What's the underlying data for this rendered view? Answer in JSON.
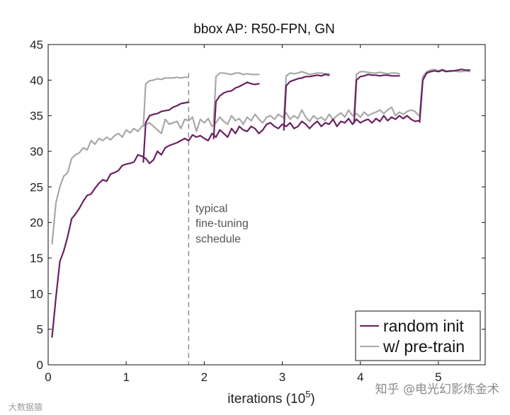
{
  "chart_data": {
    "type": "line",
    "title": "bbox AP: R50-FPN, GN",
    "xlabel": "iterations (10",
    "xlabel_sup": "5",
    "xlabel_end": ")",
    "ylabel": "",
    "xlim": [
      0,
      5.6
    ],
    "ylim": [
      0,
      45
    ],
    "xticks": [
      0,
      1,
      2,
      3,
      4,
      5
    ],
    "xtick_labels": [
      "0",
      "1",
      "2",
      "3",
      "4",
      "5"
    ],
    "yticks": [
      0,
      5,
      10,
      15,
      20,
      25,
      30,
      35,
      40,
      45
    ],
    "ytick_labels": [
      "0",
      "5",
      "10",
      "15",
      "20",
      "25",
      "30",
      "35",
      "40",
      "45"
    ],
    "grid": false,
    "legend_position": "bottom-right",
    "annotation": {
      "x": 1.8,
      "lines": [
        "typical",
        "fine-tuning",
        "schedule"
      ]
    },
    "series": [
      {
        "name": "random init",
        "color": "#6a2060",
        "segments": [
          {
            "x": [
              0.05,
              0.1,
              0.15,
              0.2,
              0.25,
              0.3,
              0.35,
              0.4,
              0.45,
              0.5,
              0.55,
              0.6,
              0.65,
              0.7,
              0.75,
              0.8,
              0.85,
              0.9,
              0.95,
              1.0,
              1.05,
              1.1,
              1.15,
              1.2,
              1.25,
              1.3,
              1.35,
              1.4,
              1.45,
              1.5,
              1.55,
              1.6,
              1.65,
              1.7,
              1.75,
              1.8,
              1.85,
              1.9,
              1.95,
              2.0,
              2.05,
              2.1,
              2.15,
              2.2,
              2.25,
              2.3,
              2.35,
              2.4,
              2.45,
              2.5,
              2.55,
              2.6,
              2.65,
              2.7,
              2.75,
              2.8,
              2.85,
              2.9,
              2.95,
              3.0,
              3.05,
              3.1,
              3.15,
              3.2,
              3.25,
              3.3,
              3.35,
              3.4,
              3.45,
              3.5,
              3.55,
              3.6,
              3.65,
              3.7,
              3.75,
              3.8,
              3.85,
              3.9,
              3.95,
              4.0,
              4.05,
              4.1,
              4.15,
              4.2,
              4.25,
              4.3,
              4.35,
              4.4,
              4.45,
              4.5,
              4.55,
              4.6,
              4.65,
              4.7,
              4.75
            ],
            "y": [
              3.9,
              9.5,
              14.5,
              16.0,
              18.0,
              20.5,
              21.2,
              22.0,
              23.0,
              23.8,
              24.0,
              24.8,
              25.5,
              26.0,
              25.8,
              26.8,
              27.0,
              27.3,
              28.0,
              28.2,
              28.3,
              28.5,
              29.5,
              29.3,
              29.0,
              28.3,
              28.8,
              30.0,
              29.5,
              30.5,
              30.8,
              31.0,
              31.2,
              31.5,
              31.8,
              31.5,
              32.3,
              32.0,
              32.2,
              31.8,
              31.5,
              32.5,
              32.0,
              33.0,
              32.5,
              32.0,
              33.2,
              32.5,
              33.5,
              33.0,
              32.8,
              33.5,
              33.2,
              32.5,
              33.0,
              33.8,
              34.0,
              33.5,
              33.2,
              33.8,
              33.5,
              34.0,
              33.2,
              33.5,
              34.2,
              33.8,
              33.2,
              33.8,
              34.2,
              33.5,
              34.0,
              33.8,
              34.5,
              33.5,
              34.2,
              34.0,
              34.6,
              33.8,
              34.5,
              34.0,
              34.3,
              34.5,
              34.0,
              34.6,
              34.2,
              35.0,
              34.3,
              34.8,
              34.5,
              35.0,
              34.6,
              35.0,
              34.5,
              34.2,
              34.3
            ]
          },
          {
            "x": [
              1.22,
              1.25,
              1.3,
              1.35,
              1.4,
              1.45,
              1.5,
              1.55,
              1.6,
              1.65,
              1.7,
              1.75,
              1.8
            ],
            "y": [
              28.5,
              34.0,
              35.0,
              35.2,
              35.3,
              35.6,
              35.7,
              35.8,
              36.2,
              36.4,
              36.7,
              36.8,
              36.9
            ]
          },
          {
            "x": [
              2.12,
              2.15,
              2.2,
              2.25,
              2.3,
              2.35,
              2.4,
              2.45,
              2.5,
              2.55,
              2.6,
              2.65,
              2.7
            ],
            "y": [
              31.8,
              37.0,
              37.8,
              38.2,
              38.4,
              38.5,
              38.9,
              39.1,
              39.4,
              39.7,
              39.5,
              39.4,
              39.5
            ]
          },
          {
            "x": [
              3.02,
              3.05,
              3.1,
              3.15,
              3.2,
              3.25,
              3.3,
              3.35,
              3.4,
              3.45,
              3.5,
              3.55,
              3.6
            ],
            "y": [
              33.0,
              39.2,
              39.8,
              40.0,
              40.2,
              40.3,
              40.5,
              40.5,
              40.6,
              40.7,
              40.6,
              40.8,
              40.7
            ]
          },
          {
            "x": [
              3.92,
              3.95,
              4.0,
              4.05,
              4.1,
              4.15,
              4.2,
              4.25,
              4.3,
              4.35,
              4.4,
              4.45,
              4.5
            ],
            "y": [
              34.0,
              40.0,
              40.5,
              40.6,
              40.8,
              40.7,
              40.7,
              40.6,
              40.7,
              40.7,
              40.6,
              40.6,
              40.6
            ]
          },
          {
            "x": [
              4.76,
              4.8,
              4.85,
              4.9,
              4.95,
              5.0,
              5.05,
              5.1,
              5.15,
              5.2,
              5.25,
              5.3,
              5.35,
              5.4
            ],
            "y": [
              34.1,
              40.0,
              41.0,
              41.2,
              41.3,
              41.2,
              41.4,
              41.2,
              41.3,
              41.3,
              41.4,
              41.5,
              41.4,
              41.4
            ]
          }
        ]
      },
      {
        "name": "w/ pre-train",
        "color": "#a8a8a8",
        "segments": [
          {
            "x": [
              0.05,
              0.1,
              0.15,
              0.2,
              0.25,
              0.3,
              0.35,
              0.4,
              0.45,
              0.5,
              0.55,
              0.6,
              0.65,
              0.7,
              0.75,
              0.8,
              0.85,
              0.9,
              0.95,
              1.0,
              1.05,
              1.1,
              1.15,
              1.2,
              1.25,
              1.3,
              1.35,
              1.4,
              1.45,
              1.5,
              1.55,
              1.6,
              1.65,
              1.7,
              1.75,
              1.8,
              1.85,
              1.9,
              1.95,
              2.0,
              2.05,
              2.1,
              2.15,
              2.2,
              2.25,
              2.3,
              2.35,
              2.4,
              2.45,
              2.5,
              2.55,
              2.6,
              2.65,
              2.7,
              2.75,
              2.8,
              2.85,
              2.9,
              2.95,
              3.0,
              3.05,
              3.1,
              3.15,
              3.2,
              3.25,
              3.3,
              3.35,
              3.4,
              3.45,
              3.5,
              3.55,
              3.6,
              3.65,
              3.7,
              3.75,
              3.8,
              3.85,
              3.9,
              3.95,
              4.0,
              4.05,
              4.1,
              4.15,
              4.2,
              4.25,
              4.3,
              4.35,
              4.4,
              4.45,
              4.5,
              4.55,
              4.6,
              4.65,
              4.7,
              4.75
            ],
            "y": [
              17.0,
              22.8,
              25.0,
              26.5,
              27.0,
              29.0,
              29.5,
              29.8,
              30.5,
              30.2,
              31.5,
              31.0,
              31.8,
              31.5,
              32.0,
              31.6,
              32.2,
              32.5,
              32.0,
              33.0,
              32.6,
              33.2,
              32.8,
              33.5,
              33.8,
              34.0,
              33.5,
              33.0,
              32.5,
              34.5,
              33.8,
              34.0,
              34.2,
              33.2,
              34.5,
              34.3,
              34.8,
              32.8,
              34.5,
              34.0,
              34.6,
              33.5,
              34.0,
              34.8,
              34.2,
              33.8,
              35.0,
              34.3,
              34.6,
              33.8,
              34.8,
              34.3,
              35.2,
              34.5,
              34.0,
              34.8,
              35.0,
              34.5,
              35.2,
              34.8,
              35.4,
              34.5,
              35.0,
              34.6,
              35.8,
              34.8,
              34.2,
              35.0,
              34.5,
              34.8,
              34.3,
              35.2,
              34.5,
              35.0,
              35.4,
              34.8,
              35.8,
              35.0,
              35.3,
              34.8,
              35.5,
              35.0,
              35.3,
              35.5,
              35.8,
              35.3,
              35.8,
              36.2,
              35.0,
              35.5,
              35.2,
              35.6,
              35.8,
              35.6,
              35.0
            ]
          },
          {
            "x": [
              1.22,
              1.25,
              1.3,
              1.35,
              1.4,
              1.45,
              1.5,
              1.55,
              1.6,
              1.65,
              1.7,
              1.75,
              1.8
            ],
            "y": [
              33.5,
              39.5,
              39.9,
              40.0,
              40.2,
              40.1,
              40.3,
              40.3,
              40.3,
              40.4,
              40.3,
              40.4,
              40.4
            ]
          },
          {
            "x": [
              2.12,
              2.15,
              2.2,
              2.25,
              2.3,
              2.35,
              2.4,
              2.45,
              2.5,
              2.55,
              2.6,
              2.65,
              2.7
            ],
            "y": [
              34.0,
              40.5,
              41.0,
              41.0,
              40.9,
              40.8,
              41.0,
              41.0,
              40.8,
              40.9,
              40.8,
              40.8,
              40.8
            ]
          },
          {
            "x": [
              3.02,
              3.05,
              3.1,
              3.15,
              3.2,
              3.25,
              3.3,
              3.35,
              3.4,
              3.45,
              3.5,
              3.55,
              3.6
            ],
            "y": [
              34.5,
              40.6,
              41.0,
              40.9,
              41.0,
              41.2,
              41.0,
              40.8,
              40.9,
              41.0,
              41.0,
              40.9,
              40.9
            ]
          },
          {
            "x": [
              3.92,
              3.95,
              4.0,
              4.05,
              4.1,
              4.15,
              4.2,
              4.25,
              4.3,
              4.35,
              4.4,
              4.45,
              4.5
            ],
            "y": [
              35.0,
              40.8,
              41.2,
              41.2,
              41.1,
              41.0,
              41.0,
              41.1,
              41.0,
              40.9,
              41.0,
              41.0,
              40.9
            ]
          },
          {
            "x": [
              4.76,
              4.8,
              4.85,
              4.9,
              4.95,
              5.0,
              5.05,
              5.1,
              5.15,
              5.2,
              5.25,
              5.3,
              5.35,
              5.4
            ],
            "y": [
              35.0,
              40.5,
              41.2,
              41.4,
              41.5,
              41.3,
              41.5,
              41.3,
              41.2,
              41.3,
              41.2,
              41.2,
              41.3,
              41.2
            ]
          }
        ]
      }
    ]
  },
  "watermark": {
    "right_text": "知乎 @电光幻影炼金术",
    "left_text": "大数据猿"
  }
}
